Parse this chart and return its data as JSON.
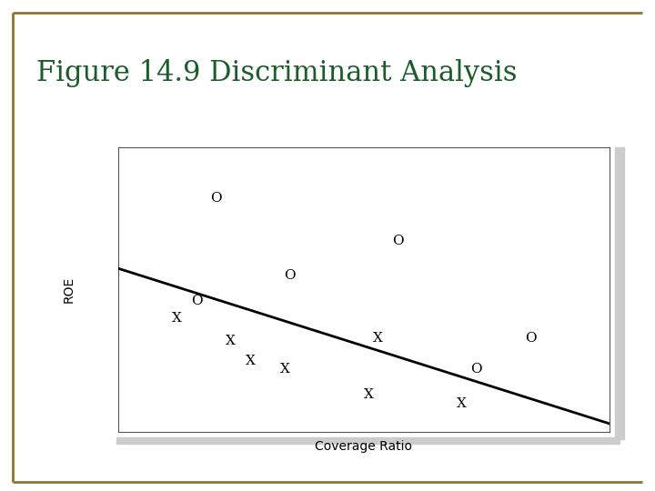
{
  "title": "Figure 14.9 Discriminant Analysis",
  "title_color": "#1a5c2a",
  "title_fontsize": 22,
  "xlabel": "Coverage Ratio",
  "ylabel": "ROE",
  "background_color": "#f0f0f0",
  "inner_bg": "#ffffff",
  "border_color": "#8B7536",
  "o_points": [
    [
      0.2,
      0.82
    ],
    [
      0.57,
      0.67
    ],
    [
      0.35,
      0.55
    ],
    [
      0.16,
      0.46
    ],
    [
      0.84,
      0.33
    ],
    [
      0.73,
      0.22
    ]
  ],
  "x_points": [
    [
      0.12,
      0.4
    ],
    [
      0.23,
      0.32
    ],
    [
      0.27,
      0.25
    ],
    [
      0.34,
      0.22
    ],
    [
      0.53,
      0.33
    ],
    [
      0.51,
      0.13
    ],
    [
      0.7,
      0.1
    ]
  ],
  "line_x": [
    0.0,
    1.0
  ],
  "line_y": [
    0.575,
    0.03
  ],
  "xlim": [
    0.0,
    1.0
  ],
  "ylim": [
    0.0,
    1.0
  ],
  "marker_fontsize": 11
}
